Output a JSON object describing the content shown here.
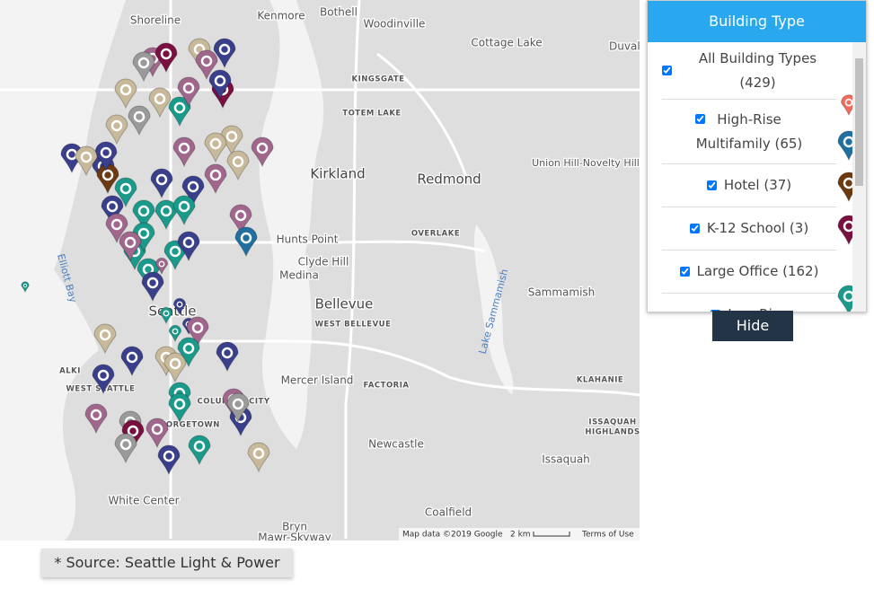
{
  "map": {
    "labels": [
      "Shoreline",
      "Kenmore",
      "Bothell",
      "Woodinville",
      "Cottage Lake",
      "Duvall",
      "KINGSGATE",
      "TOTEM LAKE",
      "Kirkland",
      "Redmond",
      "Union Hill-Novelty Hill",
      "Hunts Point",
      "Clyde Hill",
      "Medina",
      "OVERLAKE",
      "Bellevue",
      "WEST BELLEVUE",
      "Sammamish",
      "Lake Sammamish",
      "Elliott Bay",
      "Seattle",
      "Mercer Island",
      "FACTORIA",
      "KLAHANIE",
      "ISSAQUAH",
      "HIGHLANDS",
      "Issaquah",
      "Newcastle",
      "White Center",
      "Coalfield",
      "Bryn",
      "Mawr-Skyway",
      "ALKI",
      "WEST SEATTLE",
      "GEORGETOWN",
      "COLUMBIA CITY"
    ],
    "attribution": "Map data ©2019 Google",
    "scale": "2 km",
    "terms": "Terms of Use"
  },
  "panel": {
    "title": "Building Type",
    "items": [
      "All Building Types (429)",
      "High-Rise Multifamily (65)",
      "Hotel (37)",
      "K-12 School (3)",
      "Large Office (162)",
      "Low-Rise"
    ],
    "button": "Hide"
  },
  "footnote": "* Source: Seattle Light & Power"
}
